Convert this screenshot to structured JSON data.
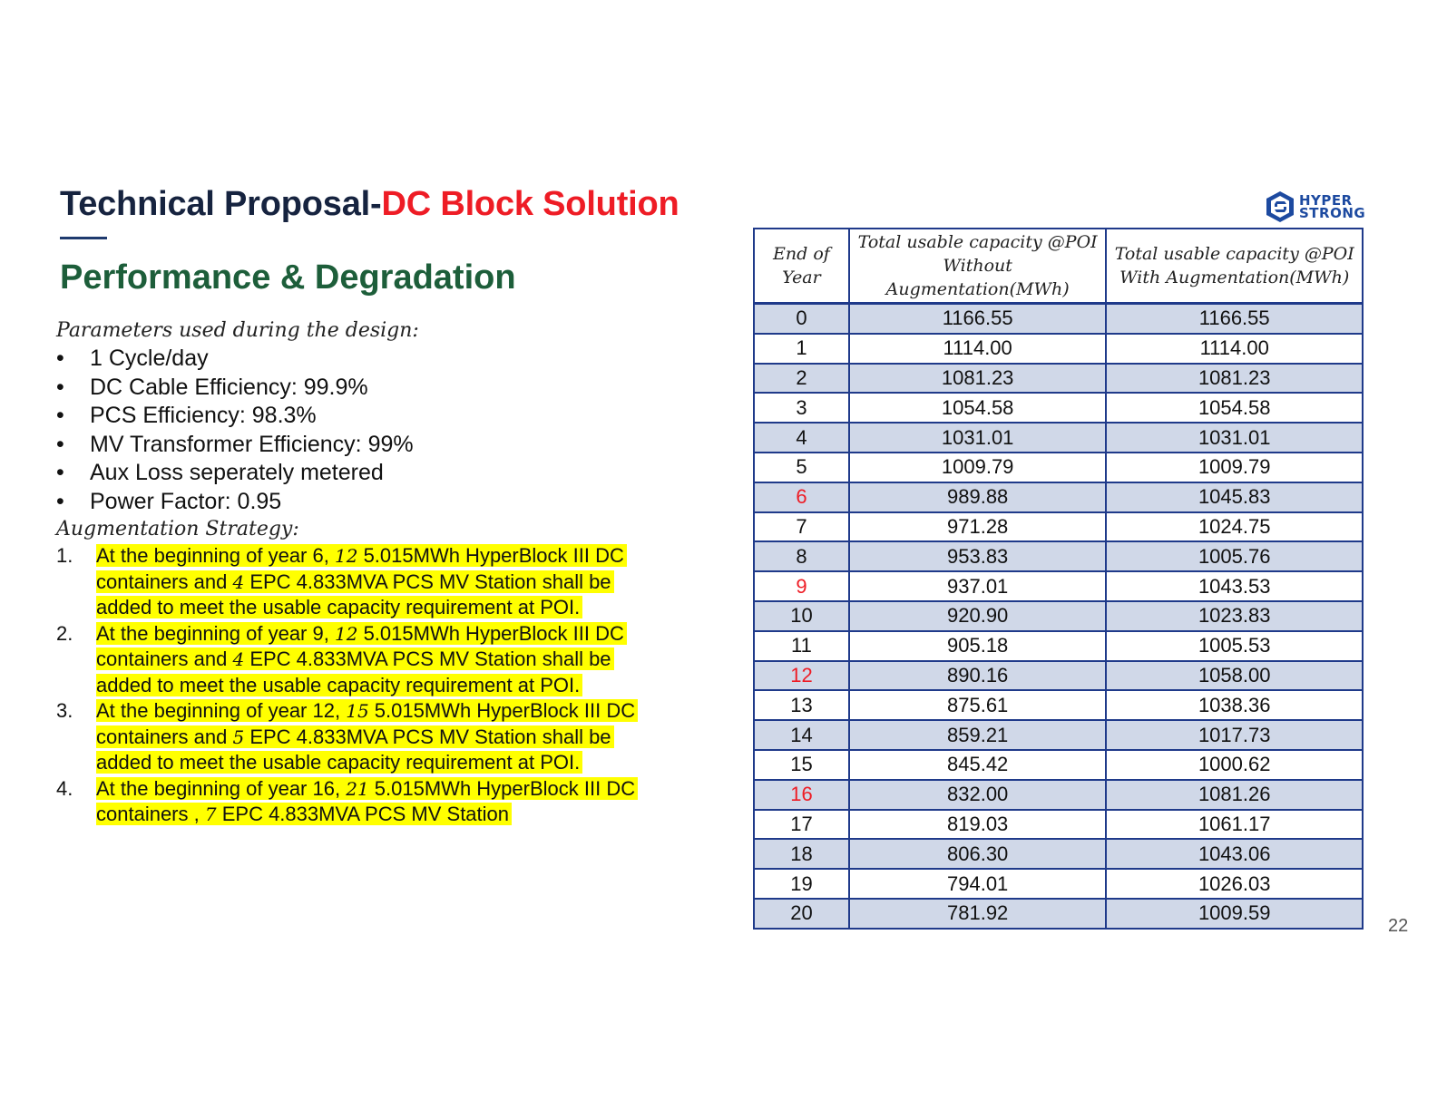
{
  "header": {
    "title_prefix": "Technical Proposal-",
    "title_accent": "DC Block Solution",
    "subtitle": "Performance & Degradation",
    "logo_line1": "HYPER",
    "logo_line2": "STRONG",
    "logo_icon": "hyperstrong-logo-icon"
  },
  "parameters": {
    "heading": "Parameters used during the design:",
    "items": [
      "1 Cycle/day",
      "DC Cable Efficiency: 99.9%",
      "PCS Efficiency: 98.3%",
      "MV Transformer Efficiency: 99%",
      "Aux Loss seperately metered",
      "Power Factor: 0.95"
    ]
  },
  "augmentation": {
    "heading": "Augmentation Strategy:",
    "items": [
      {
        "num": "1.",
        "a": "At the beginning of year 6,",
        "n1": "12",
        "b": "5.015MWh HyperBlock III DC containers and",
        "n2": "4",
        "c": "EPC 4.833MVA PCS MV Station shall be added to meet the usable capacity requirement at POI."
      },
      {
        "num": "2.",
        "a": "At the beginning of year 9,",
        "n1": "12",
        "b": "5.015MWh HyperBlock III DC containers and",
        "n2": "4",
        "c": "EPC 4.833MVA PCS MV Station shall be added to meet the usable capacity requirement at POI."
      },
      {
        "num": "3.",
        "a": "At the beginning of year 12,",
        "n1": "15",
        "b": "5.015MWh HyperBlock III DC containers and",
        "n2": "5",
        "c": "EPC 4.833MVA PCS MV Station shall be added to meet the usable capacity requirement at POI."
      },
      {
        "num": "4.",
        "a": "At the beginning of year 16,",
        "n1": "21",
        "b": "5.015MWh HyperBlock III DC containers ,",
        "n2": "7",
        "c": "EPC 4.833MVA PCS MV Station"
      }
    ]
  },
  "table": {
    "headers": [
      "End of Year",
      "Total usable capacity @POI Without Augmentation(MWh)",
      "Total usable capacity @POI With Augmentation(MWh)"
    ],
    "highlight_color": "#ee1c25",
    "rows": [
      {
        "year": "0",
        "without": "1166.55",
        "with": "1166.55",
        "augment": false
      },
      {
        "year": "1",
        "without": "1114.00",
        "with": "1114.00",
        "augment": false
      },
      {
        "year": "2",
        "without": "1081.23",
        "with": "1081.23",
        "augment": false
      },
      {
        "year": "3",
        "without": "1054.58",
        "with": "1054.58",
        "augment": false
      },
      {
        "year": "4",
        "without": "1031.01",
        "with": "1031.01",
        "augment": false
      },
      {
        "year": "5",
        "without": "1009.79",
        "with": "1009.79",
        "augment": false
      },
      {
        "year": "6",
        "without": "989.88",
        "with": "1045.83",
        "augment": true
      },
      {
        "year": "7",
        "without": "971.28",
        "with": "1024.75",
        "augment": false
      },
      {
        "year": "8",
        "without": "953.83",
        "with": "1005.76",
        "augment": false
      },
      {
        "year": "9",
        "without": "937.01",
        "with": "1043.53",
        "augment": true
      },
      {
        "year": "10",
        "without": "920.90",
        "with": "1023.83",
        "augment": false
      },
      {
        "year": "11",
        "without": "905.18",
        "with": "1005.53",
        "augment": false
      },
      {
        "year": "12",
        "without": "890.16",
        "with": "1058.00",
        "augment": true
      },
      {
        "year": "13",
        "without": "875.61",
        "with": "1038.36",
        "augment": false
      },
      {
        "year": "14",
        "without": "859.21",
        "with": "1017.73",
        "augment": false
      },
      {
        "year": "15",
        "without": "845.42",
        "with": "1000.62",
        "augment": false
      },
      {
        "year": "16",
        "without": "832.00",
        "with": "1081.26",
        "augment": true
      },
      {
        "year": "17",
        "without": "819.03",
        "with": "1061.17",
        "augment": false
      },
      {
        "year": "18",
        "without": "806.30",
        "with": "1043.06",
        "augment": false
      },
      {
        "year": "19",
        "without": "794.01",
        "with": "1026.03",
        "augment": false
      },
      {
        "year": "20",
        "without": "781.92",
        "with": "1009.59",
        "augment": false
      }
    ]
  },
  "page_number": "22"
}
